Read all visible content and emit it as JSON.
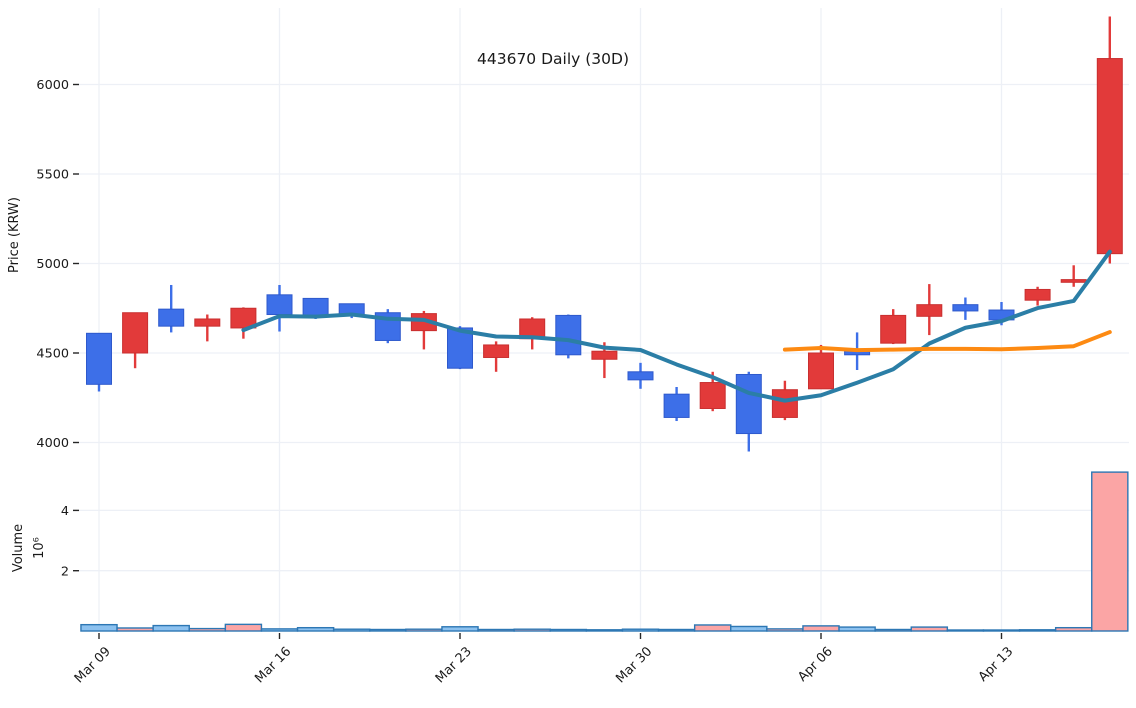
{
  "title": "443670 Daily (30D)",
  "colors": {
    "background": "#ffffff",
    "up": "#e23a3a",
    "up_edge": "#c92f2f",
    "down": "#3d6fe8",
    "down_edge": "#2e59cc",
    "ma5": "#2b7ea6",
    "ma20": "#fd8a12",
    "vol_up_fill": "#fba5a5",
    "vol_down_fill": "#8cc1ef",
    "vol_edge": "#2d77b4",
    "grid": "#edf0f6",
    "tick": "#262626",
    "text": "#1a1a1a"
  },
  "chart_data": {
    "type": "candlestick",
    "panels": [
      "price",
      "volume"
    ],
    "price_axis": {
      "label": "Price (KRW)",
      "ticks": [
        4000,
        4500,
        5000,
        5500,
        6000
      ],
      "range": [
        3895,
        6420
      ]
    },
    "volume_axis": {
      "label": "Volume",
      "scale": "10⁶",
      "ticks": [
        2,
        4
      ],
      "range": [
        0,
        5.5
      ]
    },
    "x_ticks": {
      "labels": [
        "Mar 09",
        "Mar 16",
        "Mar 23",
        "Mar 30",
        "Apr 06",
        "Apr 13"
      ],
      "indices": [
        0,
        5,
        10,
        15,
        20,
        25
      ]
    },
    "columns": [
      "date",
      "open",
      "high",
      "low",
      "close",
      "volume_millions"
    ],
    "rows": [
      [
        "Mar 09",
        4610,
        4610,
        4285,
        4325,
        0.21
      ],
      [
        "Mar 10",
        4500,
        4725,
        4415,
        4725,
        0.1
      ],
      [
        "Mar 11",
        4745,
        4880,
        4615,
        4650,
        0.18
      ],
      [
        "Mar 12",
        4650,
        4715,
        4565,
        4690,
        0.08
      ],
      [
        "Mar 13",
        4640,
        4755,
        4580,
        4750,
        0.22
      ],
      [
        "Mar 16",
        4825,
        4880,
        4620,
        4715,
        0.07
      ],
      [
        "Mar 17",
        4805,
        4805,
        4690,
        4710,
        0.11
      ],
      [
        "Mar 18",
        4775,
        4775,
        4695,
        4710,
        0.06
      ],
      [
        "Mar 19",
        4725,
        4745,
        4555,
        4570,
        0.05
      ],
      [
        "Mar 20",
        4625,
        4735,
        4520,
        4720,
        0.06
      ],
      [
        "Mar 23",
        4640,
        4650,
        4410,
        4415,
        0.14
      ],
      [
        "Mar 24",
        4475,
        4565,
        4395,
        4545,
        0.05
      ],
      [
        "Mar 25",
        4580,
        4700,
        4520,
        4690,
        0.06
      ],
      [
        "Mar 26",
        4710,
        4715,
        4470,
        4490,
        0.05
      ],
      [
        "Mar 27",
        4465,
        4560,
        4360,
        4510,
        0.04
      ],
      [
        "Mar 30",
        4395,
        4445,
        4300,
        4350,
        0.06
      ],
      [
        "Mar 31",
        4270,
        4310,
        4120,
        4140,
        0.05
      ],
      [
        "Apr 01",
        4190,
        4395,
        4175,
        4335,
        0.2
      ],
      [
        "Apr 02",
        4380,
        4395,
        3950,
        4050,
        0.15
      ],
      [
        "Apr 03",
        4140,
        4345,
        4125,
        4295,
        0.07
      ],
      [
        "Apr 06",
        4300,
        4545,
        4300,
        4500,
        0.17
      ],
      [
        "Apr 07",
        4515,
        4615,
        4405,
        4490,
        0.13
      ],
      [
        "Apr 08",
        4555,
        4745,
        4550,
        4710,
        0.05
      ],
      [
        "Apr 09",
        4705,
        4885,
        4600,
        4770,
        0.13
      ],
      [
        "Apr 10",
        4770,
        4810,
        4685,
        4735,
        0.03
      ],
      [
        "Apr 13",
        4740,
        4785,
        4655,
        4685,
        0.03
      ],
      [
        "Apr 14",
        4795,
        4870,
        4765,
        4855,
        0.04
      ],
      [
        "Apr 15",
        4895,
        4990,
        4870,
        4910,
        0.11
      ],
      [
        "Apr 16",
        5055,
        6380,
        5000,
        6145,
        5.27
      ]
    ],
    "ma5": {
      "name": "MA5",
      "start_index": 4,
      "values": [
        4628,
        4706,
        4703,
        4715,
        4691,
        4685,
        4625,
        4592,
        4588,
        4572,
        4530,
        4517,
        4436,
        4365,
        4277,
        4234,
        4264,
        4334,
        4409,
        4553,
        4641,
        4678,
        4751,
        4791,
        5066
      ]
    },
    "ma20": {
      "name": "MA20",
      "start_index": 19,
      "values": [
        4519,
        4528,
        4516,
        4519,
        4523,
        4523,
        4521,
        4528,
        4538,
        4617
      ]
    }
  }
}
